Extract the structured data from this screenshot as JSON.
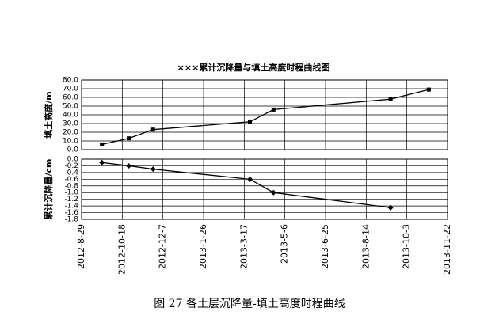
{
  "chart_data": [
    {
      "type": "line",
      "title": "×××累计沉降量与填土高度时程曲线图",
      "y_label": "填土高度/m",
      "marker": "square",
      "grid": true,
      "x": [
        "2012-9-23",
        "2012-10-26",
        "2012-11-25",
        "2013-3-24",
        "2013-4-22",
        "2013-9-13",
        "2013-10-30"
      ],
      "series": [
        {
          "color": "#000000",
          "values": [
            6,
            13,
            23,
            32,
            46,
            58,
            69
          ]
        }
      ],
      "xlim": [
        "2012-8-29",
        "2013-11-22"
      ],
      "xticks": [
        "2012-8-29",
        "2012-10-18",
        "2012-12-7",
        "2013-1-26",
        "2013-3-17",
        "2013-5-6",
        "2013-6-25",
        "2013-8-14",
        "2013-10-3",
        "2013-11-22"
      ],
      "ylim": [
        0,
        80
      ],
      "yticks": [
        {
          "value": 0,
          "label": "0.0"
        },
        {
          "value": 10,
          "label": "10.0"
        },
        {
          "value": 20,
          "label": "20.0"
        },
        {
          "value": 30,
          "label": "30.0"
        },
        {
          "value": 40,
          "label": "40.0"
        },
        {
          "value": 50,
          "label": "50.0"
        },
        {
          "value": 60,
          "label": "60.0"
        },
        {
          "value": 70,
          "label": "70.0"
        },
        {
          "value": 80,
          "label": "80.0"
        }
      ]
    },
    {
      "type": "line",
      "y_label": "累计沉降量/cm",
      "marker": "diamond",
      "grid": true,
      "x": [
        "2012-9-23",
        "2012-10-26",
        "2012-11-25",
        "2013-3-24",
        "2013-4-22",
        "2013-9-13"
      ],
      "series": [
        {
          "color": "#000000",
          "values": [
            -0.1,
            -0.2,
            -0.3,
            -0.6,
            -1.0,
            -1.45
          ]
        }
      ],
      "ylim": [
        -1.8,
        0
      ],
      "yticks": [
        {
          "value": 0,
          "label": "0.0"
        },
        -0.2,
        -0.4,
        -0.6,
        -0.8,
        {
          "value": -1,
          "label": "-1.0"
        },
        -1.2,
        -1.4,
        -1.6,
        -1.8
      ]
    }
  ],
  "caption": "图 27   各土层沉降量-填土高度时程曲线"
}
